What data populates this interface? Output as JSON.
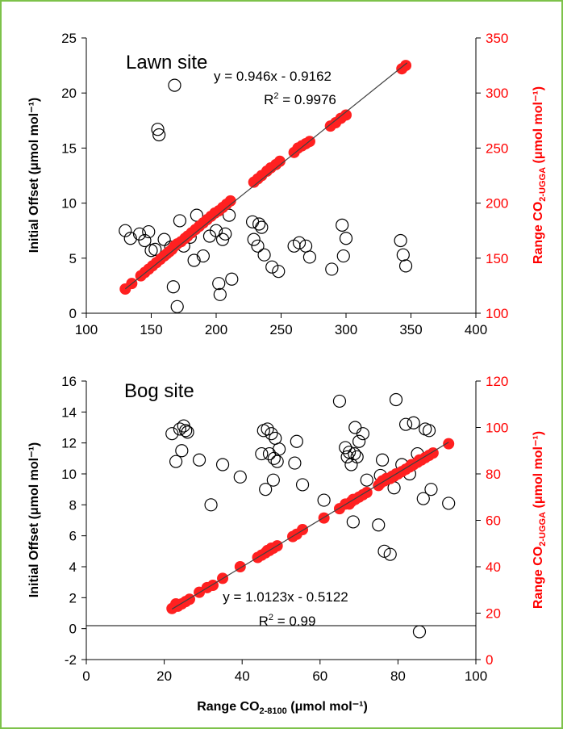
{
  "colors": {
    "frame": "#7dc24a",
    "axis_black": "#000000",
    "axis_red": "#ff0000",
    "marker_red": "#ff2020",
    "trendline": "#404040"
  },
  "chart_data": [
    {
      "type": "scatter",
      "title": "Lawn site",
      "xlabel": "",
      "ylabel": "Initial Offset (μmol mol⁻¹)",
      "ylabel_right_main": "Range CO",
      "ylabel_right_sub": "2-UGGA",
      "ylabel_right_tail": " (μmol mol⁻¹)",
      "xlim": [
        100,
        400
      ],
      "ylim": [
        0,
        25
      ],
      "y2lim": [
        100,
        350
      ],
      "xticks": [
        "100",
        "150",
        "200",
        "250",
        "300",
        "350",
        "400"
      ],
      "yticks": [
        "0",
        "5",
        "10",
        "15",
        "20",
        "25"
      ],
      "y2ticks": [
        "100",
        "150",
        "200",
        "250",
        "300",
        "350"
      ],
      "equation": "y = 0.946x - 0.9162",
      "r2_prefix": "R",
      "r2_sup": "2",
      "r2_value": " = 0.9976",
      "trendline": {
        "slope": 0.946,
        "intercept": -0.9162,
        "x_from": 130,
        "x_to": 347
      },
      "series": [
        {
          "axis": "left",
          "marker": "open-circle",
          "points": [
            [
              130,
              7.5
            ],
            [
              134,
              6.8
            ],
            [
              141,
              7.2
            ],
            [
              145,
              6.6
            ],
            [
              148,
              7.4
            ],
            [
              150,
              5.7
            ],
            [
              153,
              5.8
            ],
            [
              155,
              16.7
            ],
            [
              156,
              16.2
            ],
            [
              160,
              6.7
            ],
            [
              165,
              6.0
            ],
            [
              167,
              2.4
            ],
            [
              168,
              20.7
            ],
            [
              170,
              0.6
            ],
            [
              172,
              8.4
            ],
            [
              175,
              6.1
            ],
            [
              180,
              6.9
            ],
            [
              183,
              4.8
            ],
            [
              185,
              8.9
            ],
            [
              190,
              5.2
            ],
            [
              195,
              7.0
            ],
            [
              200,
              7.5
            ],
            [
              202,
              2.7
            ],
            [
              203,
              1.7
            ],
            [
              205,
              6.7
            ],
            [
              207,
              7.2
            ],
            [
              210,
              8.9
            ],
            [
              212,
              3.1
            ],
            [
              228,
              8.3
            ],
            [
              229,
              6.7
            ],
            [
              232,
              6.1
            ],
            [
              233,
              8.1
            ],
            [
              235,
              7.8
            ],
            [
              237,
              5.3
            ],
            [
              243,
              4.2
            ],
            [
              248,
              3.8
            ],
            [
              260,
              6.1
            ],
            [
              264,
              6.4
            ],
            [
              269,
              6.1
            ],
            [
              272,
              5.1
            ],
            [
              289,
              4.0
            ],
            [
              297,
              8.0
            ],
            [
              298,
              5.2
            ],
            [
              300,
              6.8
            ],
            [
              342,
              6.6
            ],
            [
              344,
              5.3
            ],
            [
              346,
              4.3
            ]
          ]
        },
        {
          "axis": "right",
          "marker": "filled-circle",
          "points": [
            [
              130,
              122
            ],
            [
              135,
              127
            ],
            [
              142,
              134
            ],
            [
              145,
              137
            ],
            [
              148,
              140
            ],
            [
              151,
              143
            ],
            [
              154,
              146
            ],
            [
              157,
              149
            ],
            [
              160,
              152
            ],
            [
              162,
              154
            ],
            [
              164,
              156
            ],
            [
              166,
              158
            ],
            [
              168,
              161
            ],
            [
              170,
              163
            ],
            [
              173,
              165
            ],
            [
              176,
              168
            ],
            [
              178,
              170
            ],
            [
              181,
              173
            ],
            [
              184,
              176
            ],
            [
              187,
              179
            ],
            [
              190,
              182
            ],
            [
              193,
              185
            ],
            [
              196,
              188
            ],
            [
              199,
              191
            ],
            [
              202,
              193
            ],
            [
              205,
              196
            ],
            [
              208,
              199
            ],
            [
              211,
              202
            ],
            [
              229,
              219
            ],
            [
              232,
              222
            ],
            [
              235,
              225
            ],
            [
              239,
              229
            ],
            [
              242,
              232
            ],
            [
              246,
              235
            ],
            [
              249,
              238
            ],
            [
              260,
              246
            ],
            [
              263,
              250
            ],
            [
              266,
              252
            ],
            [
              269,
              254
            ],
            [
              272,
              256
            ],
            [
              288,
              270
            ],
            [
              292,
              273
            ],
            [
              296,
              277
            ],
            [
              300,
              280
            ],
            [
              343,
              322
            ],
            [
              346,
              325
            ]
          ]
        }
      ]
    },
    {
      "type": "scatter",
      "title": "Bog site",
      "xlabel_main": "Range CO",
      "xlabel_sub": "2-8100",
      "xlabel_tail": " (μmol mol⁻¹)",
      "ylabel": "Initial Offset (μmol mol⁻¹)",
      "ylabel_right_main": "Range CO",
      "ylabel_right_sub": "2-UGGA",
      "ylabel_right_tail": " (μmol mol⁻¹)",
      "xlim": [
        0,
        100
      ],
      "ylim": [
        -2,
        16
      ],
      "y2lim": [
        0,
        120
      ],
      "xticks": [
        "0",
        "20",
        "40",
        "60",
        "80",
        "100"
      ],
      "yticks": [
        "-2",
        "0",
        "2",
        "4",
        "6",
        "8",
        "10",
        "12",
        "14",
        "16"
      ],
      "y2ticks": [
        "0",
        "20",
        "40",
        "60",
        "80",
        "100",
        "120"
      ],
      "equation": "y = 1.0123x - 0.5122",
      "r2_prefix": "R",
      "r2_sup": "2",
      "r2_value": " = 0.99",
      "trendline": {
        "slope": 1.0123,
        "intercept": -0.5122,
        "x_from": 22,
        "x_to": 93
      },
      "series": [
        {
          "axis": "left",
          "marker": "open-circle",
          "points": [
            [
              22,
              12.6
            ],
            [
              23,
              10.8
            ],
            [
              24,
              12.9
            ],
            [
              24.5,
              11.5
            ],
            [
              25,
              13.1
            ],
            [
              25.5,
              12.8
            ],
            [
              26,
              12.7
            ],
            [
              29,
              10.9
            ],
            [
              32,
              8.0
            ],
            [
              35,
              10.6
            ],
            [
              39.5,
              9.8
            ],
            [
              45,
              11.3
            ],
            [
              45.5,
              12.8
            ],
            [
              46,
              9.0
            ],
            [
              46.5,
              12.9
            ],
            [
              47,
              11.3
            ],
            [
              47.5,
              12.6
            ],
            [
              48,
              9.6
            ],
            [
              48.2,
              11.0
            ],
            [
              48.5,
              12.3
            ],
            [
              49,
              10.8
            ],
            [
              49.5,
              11.6
            ],
            [
              53.5,
              10.7
            ],
            [
              54,
              12.1
            ],
            [
              55.5,
              9.3
            ],
            [
              61,
              8.3
            ],
            [
              65,
              14.7
            ],
            [
              66.5,
              11.7
            ],
            [
              67,
              11.1
            ],
            [
              67.5,
              11.4
            ],
            [
              68,
              10.6
            ],
            [
              68.5,
              6.9
            ],
            [
              68.8,
              11.3
            ],
            [
              69,
              13.0
            ],
            [
              69.5,
              11.1
            ],
            [
              70,
              12.1
            ],
            [
              71,
              12.6
            ],
            [
              72,
              9.6
            ],
            [
              75,
              6.7
            ],
            [
              75.5,
              9.9
            ],
            [
              76,
              10.9
            ],
            [
              76.5,
              5.0
            ],
            [
              78,
              4.8
            ],
            [
              79,
              9.1
            ],
            [
              79.5,
              14.8
            ],
            [
              81,
              10.6
            ],
            [
              82,
              13.2
            ],
            [
              83,
              10.0
            ],
            [
              84,
              13.3
            ],
            [
              85,
              11.3
            ],
            [
              85.5,
              -0.2
            ],
            [
              86.5,
              8.4
            ],
            [
              87,
              12.9
            ],
            [
              88,
              12.8
            ],
            [
              88.5,
              9.0
            ],
            [
              93,
              8.1
            ]
          ]
        },
        {
          "axis": "right",
          "marker": "filled-circle",
          "points": [
            [
              22,
              22
            ],
            [
              23,
              24
            ],
            [
              23.5,
              23
            ],
            [
              24.5,
              24
            ],
            [
              25.5,
              25
            ],
            [
              26.5,
              26
            ],
            [
              29,
              29
            ],
            [
              31,
              31
            ],
            [
              32.5,
              32
            ],
            [
              35,
              35
            ],
            [
              39.5,
              40
            ],
            [
              44,
              44
            ],
            [
              45,
              45
            ],
            [
              46,
              46
            ],
            [
              46.5,
              47
            ],
            [
              47,
              47
            ],
            [
              47.5,
              48
            ],
            [
              48,
              48
            ],
            [
              49,
              49
            ],
            [
              53,
              53
            ],
            [
              54,
              54
            ],
            [
              55.5,
              56
            ],
            [
              61,
              61
            ],
            [
              65,
              65
            ],
            [
              66.5,
              67
            ],
            [
              67.5,
              67
            ],
            [
              68,
              68
            ],
            [
              68.5,
              69
            ],
            [
              69,
              69
            ],
            [
              70,
              70
            ],
            [
              71,
              71
            ],
            [
              72,
              72
            ],
            [
              75,
              75
            ],
            [
              75.5,
              76
            ],
            [
              76,
              77
            ],
            [
              76.5,
              77
            ],
            [
              77,
              78
            ],
            [
              78,
              78
            ],
            [
              78.5,
              79
            ],
            [
              79,
              79
            ],
            [
              79.5,
              80
            ],
            [
              80,
              80
            ],
            [
              81,
              81
            ],
            [
              82,
              82
            ],
            [
              83,
              83
            ],
            [
              83.5,
              84
            ],
            [
              84,
              84
            ],
            [
              85,
              85
            ],
            [
              85.5,
              86
            ],
            [
              86,
              86
            ],
            [
              87,
              87
            ],
            [
              88,
              88
            ],
            [
              89,
              89
            ],
            [
              93,
              93
            ]
          ]
        }
      ]
    }
  ]
}
